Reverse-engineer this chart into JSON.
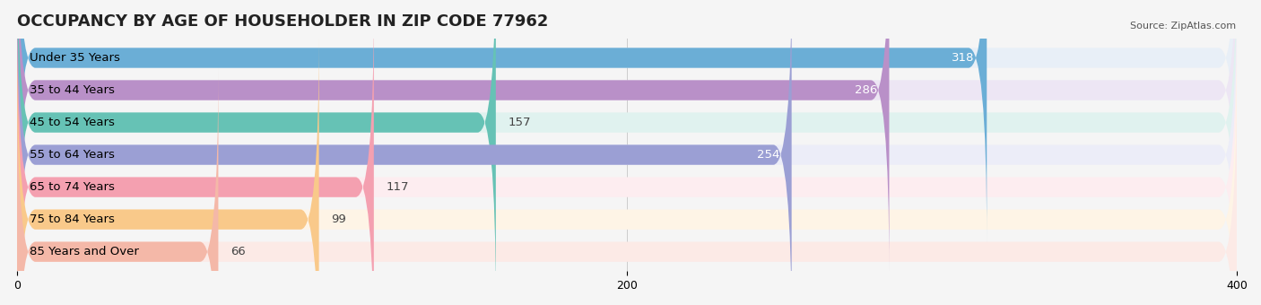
{
  "title": "OCCUPANCY BY AGE OF HOUSEHOLDER IN ZIP CODE 77962",
  "source": "Source: ZipAtlas.com",
  "categories": [
    "Under 35 Years",
    "35 to 44 Years",
    "45 to 54 Years",
    "55 to 64 Years",
    "65 to 74 Years",
    "75 to 84 Years",
    "85 Years and Over"
  ],
  "values": [
    318,
    286,
    157,
    254,
    117,
    99,
    66
  ],
  "bar_colors": [
    "#6BAED6",
    "#B990C8",
    "#66C2B5",
    "#9B9FD4",
    "#F4A0B0",
    "#F9C98A",
    "#F4B8A8"
  ],
  "bg_colors": [
    "#E8EFF7",
    "#EDE6F4",
    "#E0F2EF",
    "#ECEDF8",
    "#FDEDF0",
    "#FEF4E6",
    "#FCEAE6"
  ],
  "xlim": [
    0,
    400
  ],
  "xticks": [
    0,
    200,
    400
  ],
  "background": "#F5F5F5",
  "bar_height": 0.62,
  "title_fontsize": 13,
  "label_fontsize": 9.5,
  "value_fontsize": 9.5
}
